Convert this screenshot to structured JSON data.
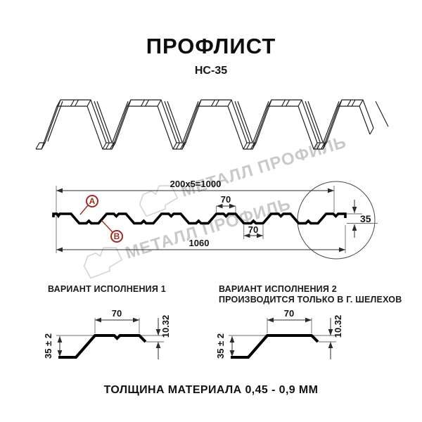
{
  "title": "ПРОФЛИСТ",
  "subtitle": "НС-35",
  "watermark": {
    "text": "МЕТАЛЛ ПРОФИЛЬ",
    "color": "#c9c9c9"
  },
  "cross_section": {
    "dim_total_top": "200x5=1000",
    "dim_rib_top": "70",
    "dim_rib_bottom": "70",
    "dim_overall_width": "1060",
    "dim_height": "35",
    "label_a": "А",
    "label_b": "В",
    "accent_color": "#a12b20"
  },
  "variants": [
    {
      "heading": "ВАРИАНТ ИСПОЛНЕНИЯ 1",
      "subheading": "",
      "dim_top_flange": "70",
      "dim_edge_step": "10.32",
      "dim_height": "35 ± 2"
    },
    {
      "heading": "ВАРИАНТ ИСПОЛНЕНИЯ 2",
      "subheading": "ПРОИЗВОДИТСЯ ТОЛЬКО В Г. ШЕЛЕХОВ",
      "dim_top_flange": "70",
      "dim_edge_step": "10.32",
      "dim_height": "35 ± 2"
    }
  ],
  "footer": {
    "text": "ТОЛЩИНА МАТЕРИАЛА 0,45 - 0,9 ММ"
  }
}
